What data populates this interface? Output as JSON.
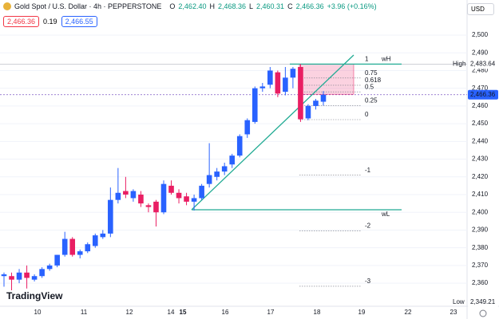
{
  "header": {
    "symbol": "Gold Spot / U.S. Dollar · 4h · PEPPERSTONE",
    "ohlc": [
      {
        "label": "O",
        "value": "2,462.40"
      },
      {
        "label": "H",
        "value": "2,468.36"
      },
      {
        "label": "L",
        "value": "2,460.31"
      },
      {
        "label": "C",
        "value": "2,466.36"
      }
    ],
    "change": "+3.96 (+0.16%)",
    "sell": "2,466.36",
    "spread": "0.19",
    "buy": "2,466.55",
    "currency": "USD",
    "logo": "TradingView"
  },
  "chart_data": {
    "type": "candlestick",
    "open": [
      2364,
      2364,
      2362,
      2366,
      2362,
      2364,
      2368,
      2370,
      2376,
      2385,
      2376,
      2378,
      2381,
      2386,
      2388,
      2407,
      2412,
      2408,
      2410,
      2404,
      2406,
      2400,
      2415,
      2411,
      2409,
      2406,
      2408,
      2416,
      2420,
      2423,
      2427,
      2432,
      2444,
      2451,
      2470,
      2472,
      2479,
      2468,
      2476,
      2482,
      2453,
      2460,
      2462.4
    ],
    "high": [
      2366,
      2366,
      2368,
      2370,
      2365,
      2369,
      2371,
      2376,
      2389,
      2386,
      2379,
      2383,
      2388,
      2390,
      2414,
      2425,
      2420,
      2413,
      2412,
      2405,
      2407,
      2418,
      2418,
      2413,
      2411,
      2410,
      2416,
      2439,
      2425,
      2428,
      2433,
      2444,
      2453,
      2471,
      2473,
      2482,
      2480,
      2482,
      2482,
      2483.64,
      2461,
      2464,
      2468.36
    ],
    "low": [
      2358,
      2356,
      2360,
      2357,
      2361,
      2363,
      2367,
      2369,
      2375,
      2375,
      2374,
      2377,
      2380,
      2385,
      2386,
      2405,
      2408,
      2406,
      2403,
      2400,
      2392,
      2399,
      2410,
      2405,
      2404,
      2401,
      2407,
      2414,
      2418,
      2421,
      2425,
      2431,
      2442,
      2450,
      2468,
      2470,
      2465,
      2466,
      2470,
      2451,
      2452,
      2458,
      2460.31
    ],
    "close": [
      2365,
      2362,
      2366,
      2363,
      2364,
      2368,
      2370,
      2376,
      2385,
      2376,
      2378,
      2382,
      2387,
      2388,
      2407,
      2411,
      2410,
      2412,
      2405,
      2403,
      2400,
      2416,
      2411,
      2408,
      2406,
      2408,
      2415,
      2421,
      2423,
      2426,
      2432,
      2443,
      2452,
      2470,
      2471,
      2480,
      2467,
      2476,
      2481,
      2452.5,
      2460,
      2463,
      2466.36
    ],
    "up_color": "#2962ff",
    "down_color": "#e91e63",
    "ylim": [
      2347,
      2509
    ],
    "yticks": [
      {
        "value": 2360,
        "label": "2,360"
      },
      {
        "value": 2370,
        "label": "2,370"
      },
      {
        "value": 2380,
        "label": "2,380"
      },
      {
        "value": 2390,
        "label": "2,390"
      },
      {
        "value": 2400,
        "label": "2,400"
      },
      {
        "value": 2410,
        "label": "2,410"
      },
      {
        "value": 2420,
        "label": "2,420"
      },
      {
        "value": 2430,
        "label": "2,430"
      },
      {
        "value": 2440,
        "label": "2,440"
      },
      {
        "value": 2450,
        "label": "2,450"
      },
      {
        "value": 2460,
        "label": "2,460"
      },
      {
        "value": 2470,
        "label": "2,470"
      },
      {
        "value": 2480,
        "label": "2,480"
      },
      {
        "value": 2490,
        "label": "2,490"
      },
      {
        "value": 2500,
        "label": "2,500"
      }
    ],
    "xlabels": [
      "10",
      "11",
      "12",
      "14",
      "15",
      "16",
      "17",
      "18",
      "19",
      "22",
      "23"
    ],
    "markers": [
      {
        "label": "High",
        "value": 2483.64,
        "value_label": "2,483.64"
      },
      {
        "value": 2466.36,
        "value_label": "2,466.36"
      },
      {
        "label": "Low",
        "value": 2349.21,
        "value_label": "2,349.21"
      }
    ],
    "fib_levels": [
      1,
      0.75,
      0.618,
      0.5,
      0.25,
      0,
      -1,
      -2,
      -3
    ],
    "drawing_labels": [
      "wH",
      "wL"
    ]
  }
}
